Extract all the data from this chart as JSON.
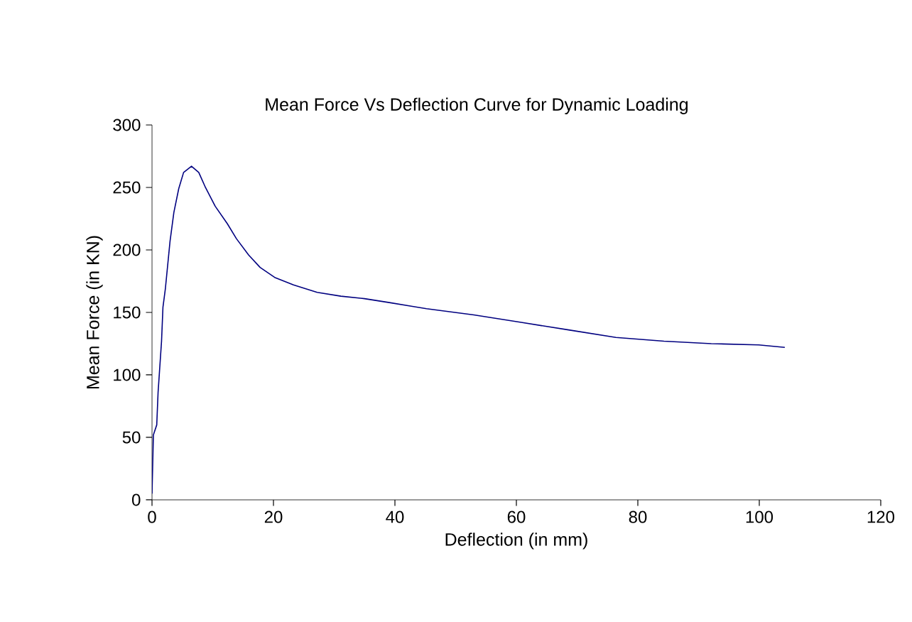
{
  "chart_data": {
    "type": "line",
    "title": "Mean Force Vs Deflection Curve for Dynamic Loading",
    "xlabel": "Deflection (in mm)",
    "ylabel": "Mean Force (in KN)",
    "x": [
      0,
      0.23,
      0.78,
      1.0,
      1.57,
      1.8,
      2.2,
      2.97,
      3.6,
      4.4,
      5.2,
      6.5,
      7.7,
      8.8,
      10.4,
      12.4,
      13.9,
      15.9,
      17.8,
      20.2,
      23.3,
      27.2,
      31.1,
      35.0,
      38.9,
      42.7,
      45.2,
      53.0,
      60.8,
      68.6,
      76.4,
      84.3,
      92.1,
      99.9,
      104.2
    ],
    "series": [
      {
        "color": "#000080",
        "values": [
          5,
          52,
          60,
          86,
          127,
          154,
          169,
          207,
          230,
          249,
          262,
          267,
          262,
          250,
          235,
          221,
          209,
          196,
          186,
          178,
          172,
          166,
          163,
          161,
          158,
          155,
          153,
          148,
          142,
          136,
          130,
          127,
          125,
          124,
          122
        ]
      }
    ],
    "xlim": [
      0,
      120
    ],
    "ylim": [
      0,
      300
    ],
    "xticks": [
      0,
      20,
      40,
      60,
      80,
      100,
      120
    ],
    "yticks": [
      0,
      50,
      100,
      150,
      200,
      250,
      300
    ],
    "grid": false,
    "marker": "none",
    "line_style": "solid"
  }
}
